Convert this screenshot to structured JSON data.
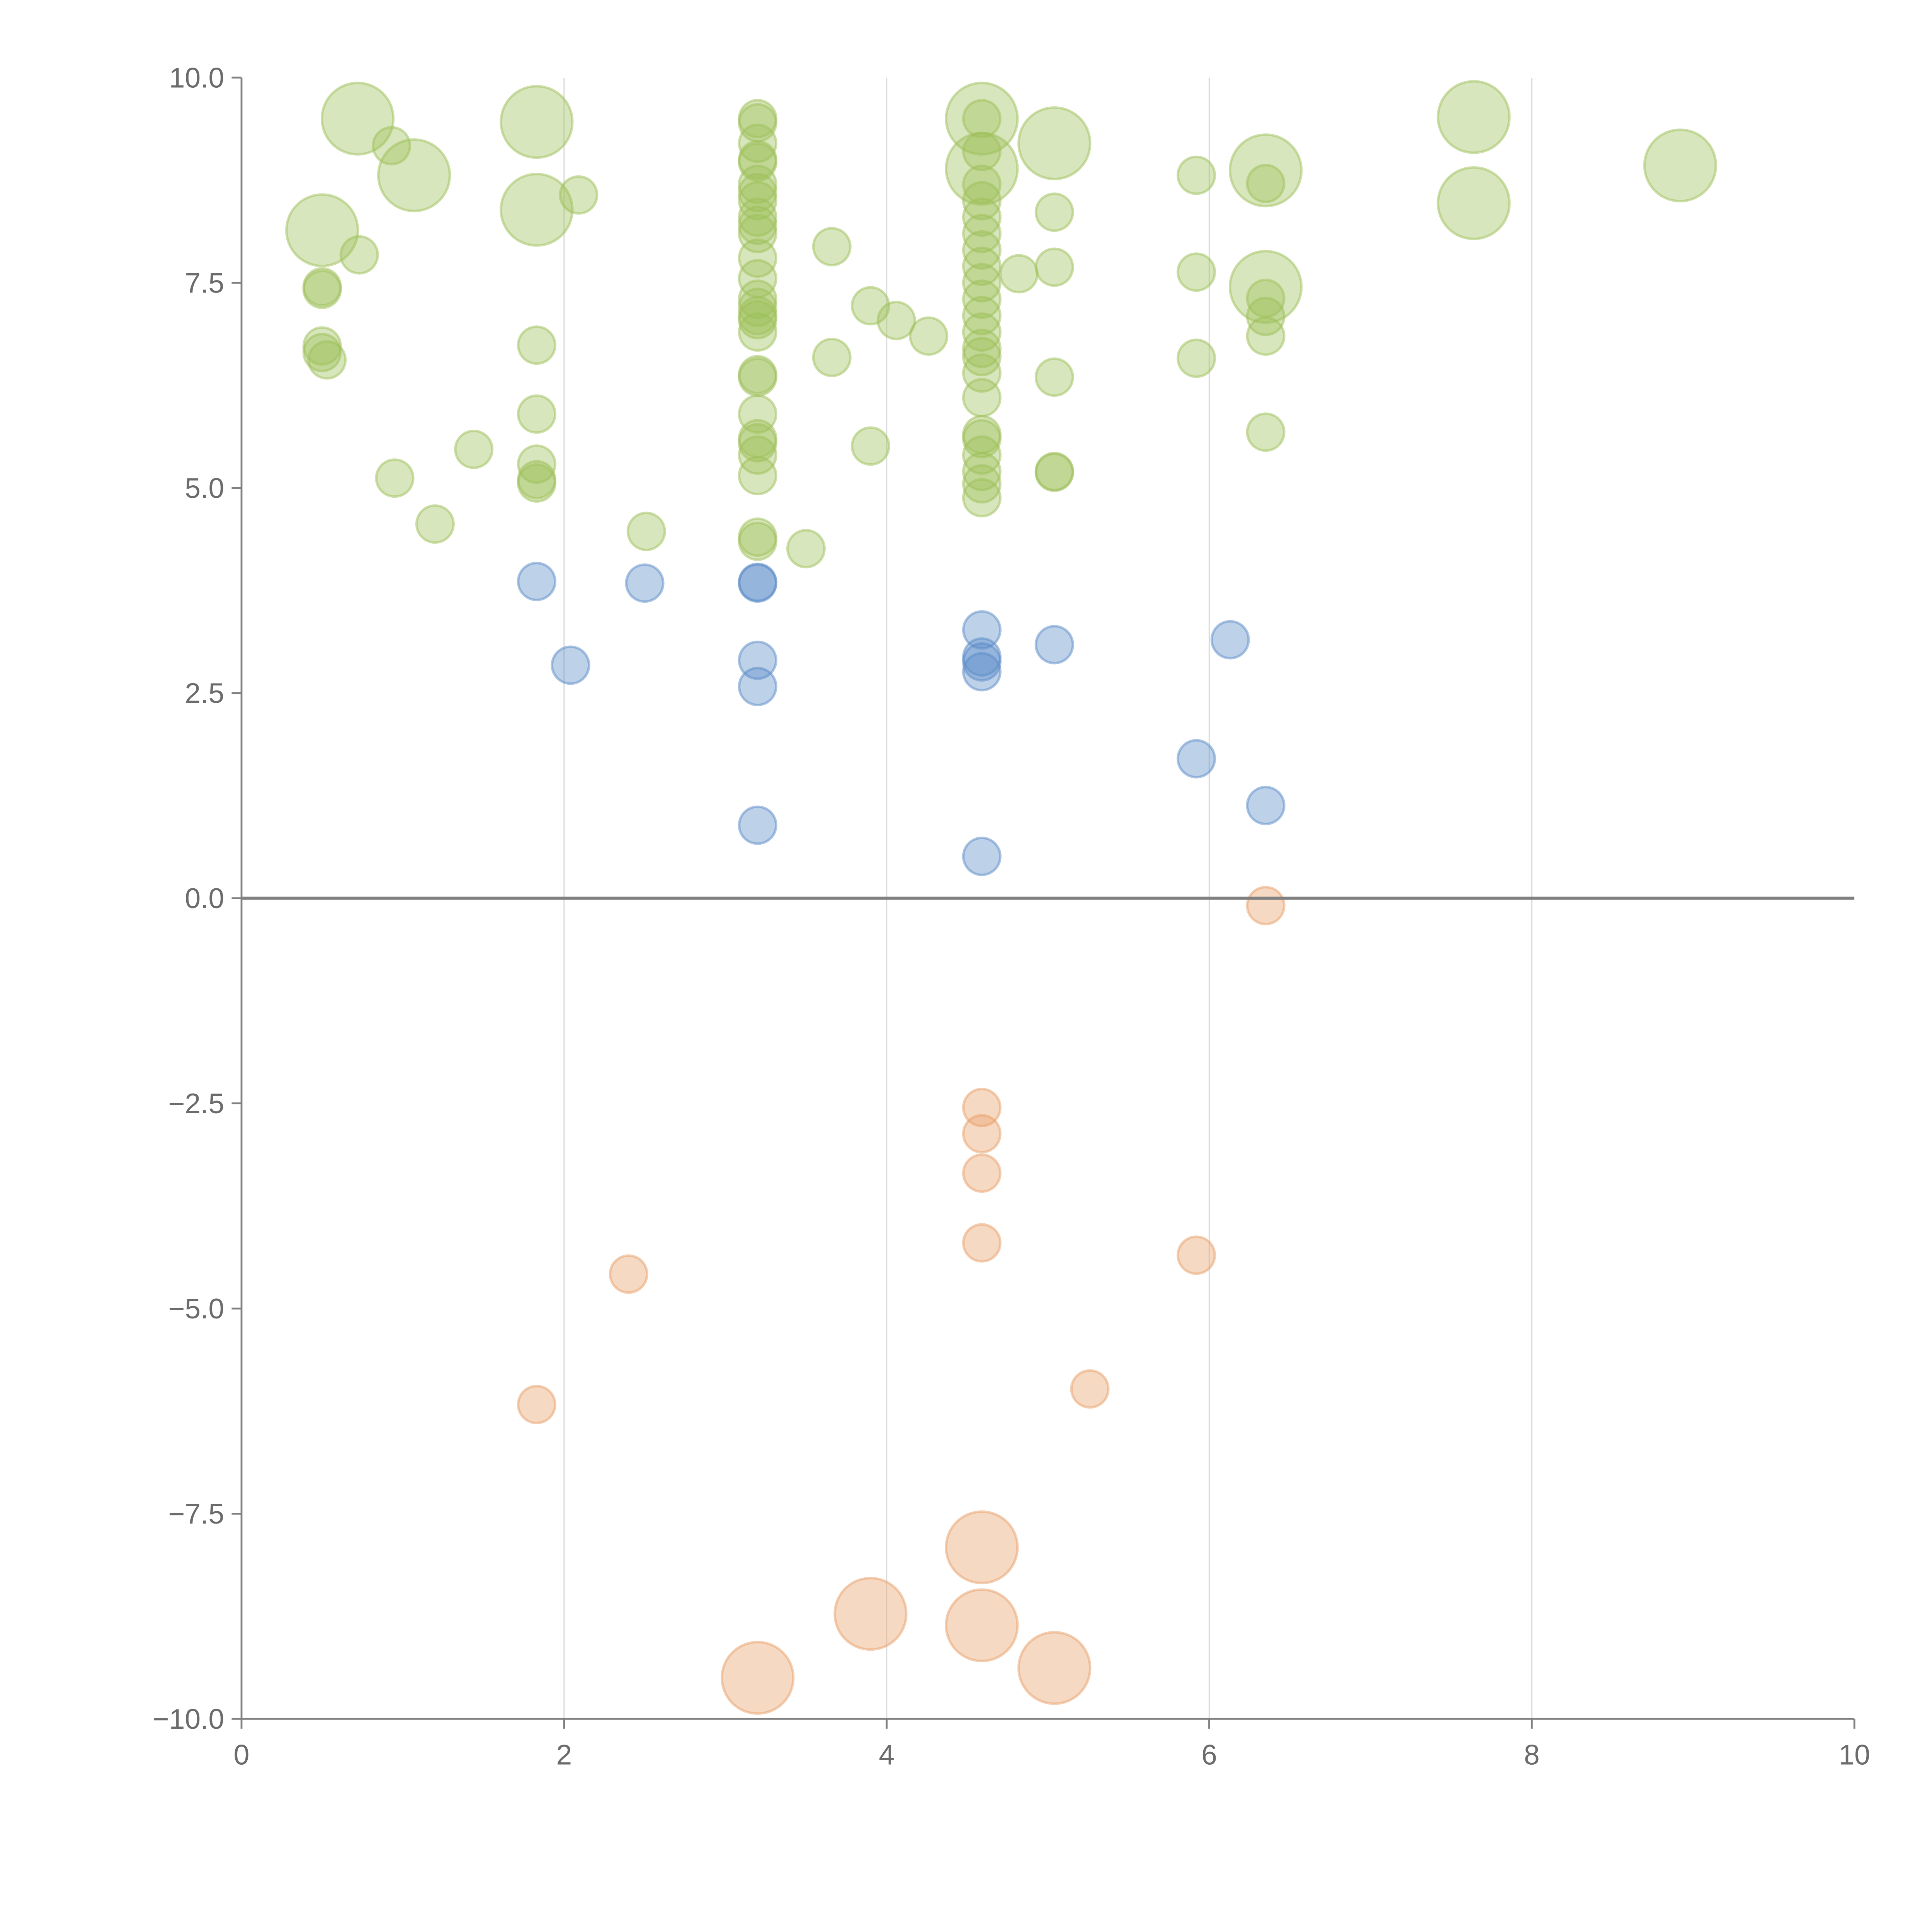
{
  "chart_data": {
    "type": "scatter",
    "title": "",
    "xlabel": "",
    "ylabel": "",
    "xlim": [
      0,
      10
    ],
    "ylim": [
      -10,
      10
    ],
    "xticks": [
      "0",
      "2",
      "4",
      "6",
      "8",
      "10"
    ],
    "xtick_values": [
      0,
      2,
      4,
      6,
      8,
      10
    ],
    "yticks": [
      "10.0",
      "7.5",
      "5.0",
      "2.5",
      "0.0",
      "−2.5",
      "−5.0",
      "−7.5",
      "−10.0"
    ],
    "ytick_values": [
      10,
      7.5,
      5,
      2.5,
      0,
      -2.5,
      -5,
      -7.5,
      -10
    ],
    "grid": "vertical",
    "reference_line_y": 0,
    "size_note": "point size 1 = small bubble, 2 = large bubble",
    "series": [
      {
        "name": "green",
        "color": "#9dc05a",
        "points": [
          [
            0.72,
            9.5,
            2
          ],
          [
            0.93,
            9.17,
            1
          ],
          [
            1.07,
            8.81,
            2
          ],
          [
            0.5,
            8.14,
            2
          ],
          [
            0.73,
            7.84,
            1
          ],
          [
            0.5,
            7.45,
            1
          ],
          [
            0.5,
            7.42,
            1
          ],
          [
            0.5,
            6.73,
            1
          ],
          [
            0.5,
            6.65,
            1
          ],
          [
            0.53,
            6.56,
            1
          ],
          [
            1.83,
            9.46,
            2
          ],
          [
            1.83,
            8.39,
            2
          ],
          [
            2.09,
            8.57,
            1
          ],
          [
            1.83,
            6.74,
            1
          ],
          [
            1.83,
            5.9,
            1
          ],
          [
            1.83,
            5.29,
            1
          ],
          [
            1.83,
            5.06,
            1
          ],
          [
            1.83,
            5.1,
            1
          ],
          [
            0.95,
            5.12,
            1
          ],
          [
            1.44,
            5.47,
            1
          ],
          [
            1.2,
            4.56,
            1
          ],
          [
            2.51,
            4.47,
            1
          ],
          [
            3.2,
            9.5,
            1
          ],
          [
            3.2,
            9.45,
            1
          ],
          [
            3.2,
            9.2,
            1
          ],
          [
            3.2,
            9.0,
            1
          ],
          [
            3.2,
            8.97,
            1
          ],
          [
            3.2,
            8.7,
            1
          ],
          [
            3.2,
            8.6,
            1
          ],
          [
            3.2,
            8.5,
            1
          ],
          [
            3.2,
            8.3,
            1
          ],
          [
            3.2,
            8.2,
            1
          ],
          [
            3.2,
            8.1,
            1
          ],
          [
            3.2,
            7.8,
            1
          ],
          [
            3.2,
            7.55,
            1
          ],
          [
            3.2,
            7.3,
            1
          ],
          [
            3.2,
            7.2,
            1
          ],
          [
            3.2,
            7.1,
            1
          ],
          [
            3.2,
            7.05,
            1
          ],
          [
            3.2,
            6.9,
            1
          ],
          [
            3.2,
            6.38,
            1
          ],
          [
            3.2,
            6.35,
            1
          ],
          [
            3.2,
            5.9,
            1
          ],
          [
            3.2,
            5.6,
            1
          ],
          [
            3.2,
            5.55,
            1
          ],
          [
            3.2,
            5.4,
            1
          ],
          [
            3.2,
            5.15,
            1
          ],
          [
            3.2,
            4.4,
            1
          ],
          [
            3.2,
            4.35,
            1
          ],
          [
            3.5,
            4.26,
            1
          ],
          [
            3.66,
            7.94,
            1
          ],
          [
            3.66,
            6.59,
            1
          ],
          [
            3.9,
            7.22,
            1
          ],
          [
            3.9,
            5.51,
            1
          ],
          [
            4.06,
            7.04,
            1
          ],
          [
            4.26,
            6.85,
            1
          ],
          [
            4.59,
            9.5,
            2
          ],
          [
            4.59,
            8.89,
            2
          ],
          [
            4.59,
            9.5,
            1
          ],
          [
            4.59,
            9.1,
            1
          ],
          [
            4.59,
            8.7,
            1
          ],
          [
            4.59,
            8.5,
            1
          ],
          [
            4.59,
            8.3,
            1
          ],
          [
            4.59,
            8.1,
            1
          ],
          [
            4.59,
            7.9,
            1
          ],
          [
            4.59,
            7.7,
            1
          ],
          [
            4.59,
            7.5,
            1
          ],
          [
            4.59,
            7.3,
            1
          ],
          [
            4.59,
            7.1,
            1
          ],
          [
            4.59,
            6.9,
            1
          ],
          [
            4.59,
            6.7,
            1
          ],
          [
            4.59,
            6.6,
            1
          ],
          [
            4.59,
            6.4,
            1
          ],
          [
            4.59,
            6.1,
            1
          ],
          [
            4.59,
            5.65,
            1
          ],
          [
            4.59,
            5.6,
            1
          ],
          [
            4.59,
            5.4,
            1
          ],
          [
            4.59,
            5.2,
            1
          ],
          [
            4.59,
            5.05,
            1
          ],
          [
            4.59,
            4.88,
            1
          ],
          [
            4.82,
            7.61,
            1
          ],
          [
            5.04,
            9.2,
            2
          ],
          [
            5.04,
            8.36,
            1
          ],
          [
            5.04,
            7.69,
            1
          ],
          [
            5.04,
            6.35,
            1
          ],
          [
            5.04,
            5.2,
            1
          ],
          [
            5.04,
            5.19,
            1
          ],
          [
            5.92,
            8.81,
            1
          ],
          [
            5.92,
            7.63,
            1
          ],
          [
            5.92,
            6.58,
            1
          ],
          [
            6.35,
            8.87,
            2
          ],
          [
            6.35,
            8.71,
            1
          ],
          [
            6.35,
            7.45,
            2
          ],
          [
            6.35,
            7.31,
            1
          ],
          [
            6.35,
            7.09,
            1
          ],
          [
            6.35,
            6.85,
            1
          ],
          [
            6.35,
            5.68,
            1
          ],
          [
            7.64,
            9.52,
            2
          ],
          [
            7.64,
            8.47,
            2
          ],
          [
            8.92,
            8.93,
            2
          ]
        ]
      },
      {
        "name": "blue",
        "color": "#5b8cc8",
        "points": [
          [
            1.83,
            3.86,
            1
          ],
          [
            2.04,
            2.84,
            1
          ],
          [
            2.5,
            3.84,
            1
          ],
          [
            3.2,
            3.84,
            1
          ],
          [
            3.2,
            3.85,
            1
          ],
          [
            3.2,
            2.9,
            1
          ],
          [
            3.2,
            2.58,
            1
          ],
          [
            3.2,
            0.89,
            1
          ],
          [
            4.59,
            3.27,
            1
          ],
          [
            4.59,
            2.94,
            1
          ],
          [
            4.59,
            2.88,
            1
          ],
          [
            4.59,
            2.76,
            1
          ],
          [
            4.59,
            0.51,
            1
          ],
          [
            5.04,
            3.09,
            1
          ],
          [
            6.13,
            3.15,
            1
          ],
          [
            5.92,
            1.7,
            1
          ],
          [
            6.35,
            1.13,
            1
          ]
        ]
      },
      {
        "name": "orange",
        "color": "#e8a06a",
        "points": [
          [
            6.35,
            -0.09,
            1
          ],
          [
            4.59,
            -2.55,
            1
          ],
          [
            4.59,
            -2.87,
            1
          ],
          [
            4.59,
            -3.35,
            1
          ],
          [
            4.59,
            -4.2,
            1
          ],
          [
            5.92,
            -4.35,
            1
          ],
          [
            2.4,
            -4.58,
            1
          ],
          [
            1.83,
            -6.17,
            1
          ],
          [
            5.26,
            -5.98,
            1
          ],
          [
            4.59,
            -7.91,
            2
          ],
          [
            3.9,
            -8.72,
            2
          ],
          [
            4.59,
            -8.86,
            2
          ],
          [
            5.04,
            -9.38,
            2
          ],
          [
            3.2,
            -9.5,
            2
          ]
        ]
      }
    ]
  }
}
